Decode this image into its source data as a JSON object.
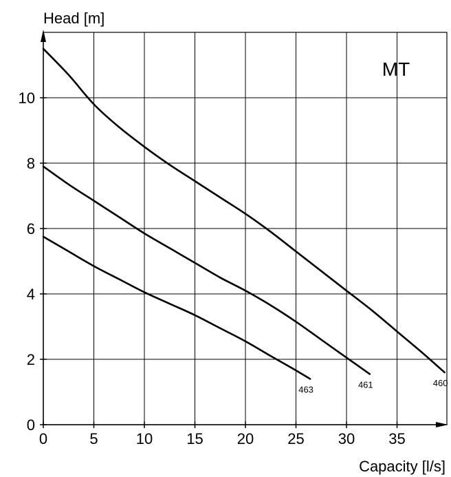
{
  "chart_data": {
    "type": "line",
    "title": "MT",
    "xlabel": "Capacity [l/s]",
    "ylabel": "Head [m]",
    "xlim": [
      0,
      40
    ],
    "ylim": [
      0,
      12
    ],
    "x_ticks": [
      0,
      5,
      10,
      15,
      20,
      25,
      30,
      35
    ],
    "y_ticks": [
      0,
      2,
      4,
      6,
      8,
      10
    ],
    "grid": true,
    "series": [
      {
        "name": "460",
        "x": [
          0,
          2.5,
          5,
          7.5,
          10,
          12.5,
          15,
          17.5,
          20,
          22.5,
          25,
          27.5,
          30,
          32.5,
          35,
          37.5,
          39.7
        ],
        "y": [
          11.5,
          10.7,
          9.8,
          9.1,
          8.5,
          7.95,
          7.45,
          6.95,
          6.45,
          5.9,
          5.3,
          4.7,
          4.1,
          3.5,
          2.85,
          2.2,
          1.6
        ]
      },
      {
        "name": "461",
        "x": [
          0,
          2.5,
          5,
          7.5,
          10,
          12.5,
          15,
          17.5,
          20,
          22.5,
          25,
          27.5,
          30,
          32.3
        ],
        "y": [
          7.9,
          7.35,
          6.85,
          6.35,
          5.85,
          5.4,
          4.95,
          4.5,
          4.1,
          3.65,
          3.15,
          2.6,
          2.05,
          1.55
        ]
      },
      {
        "name": "463",
        "x": [
          0,
          2.5,
          5,
          7.5,
          10,
          12.5,
          15,
          17.5,
          20,
          22.5,
          24.5,
          26.4
        ],
        "y": [
          5.75,
          5.3,
          4.85,
          4.45,
          4.05,
          3.7,
          3.35,
          2.95,
          2.55,
          2.1,
          1.75,
          1.4
        ]
      }
    ]
  }
}
